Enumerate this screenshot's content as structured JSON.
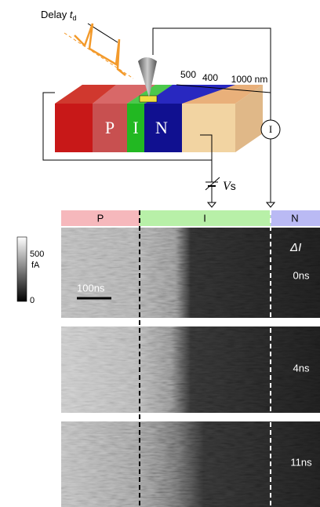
{
  "schematic": {
    "delay_label": "Delay",
    "delay_symbol": "t",
    "delay_subscript": "d",
    "widths": [
      "500",
      "400",
      "1000 nm"
    ],
    "regions": [
      "P",
      "I",
      "N"
    ],
    "ammeter": "I",
    "bias_symbol": "V",
    "bias_subscript": "s"
  },
  "maps": {
    "bands": [
      "P",
      "I",
      "N"
    ],
    "colorbar": {
      "max": "500",
      "unit": "fA",
      "min": "0"
    },
    "scale_bar": "100ns",
    "quantity": "ΔI",
    "delays": [
      "0ns",
      "4ns",
      "11ns"
    ]
  }
}
